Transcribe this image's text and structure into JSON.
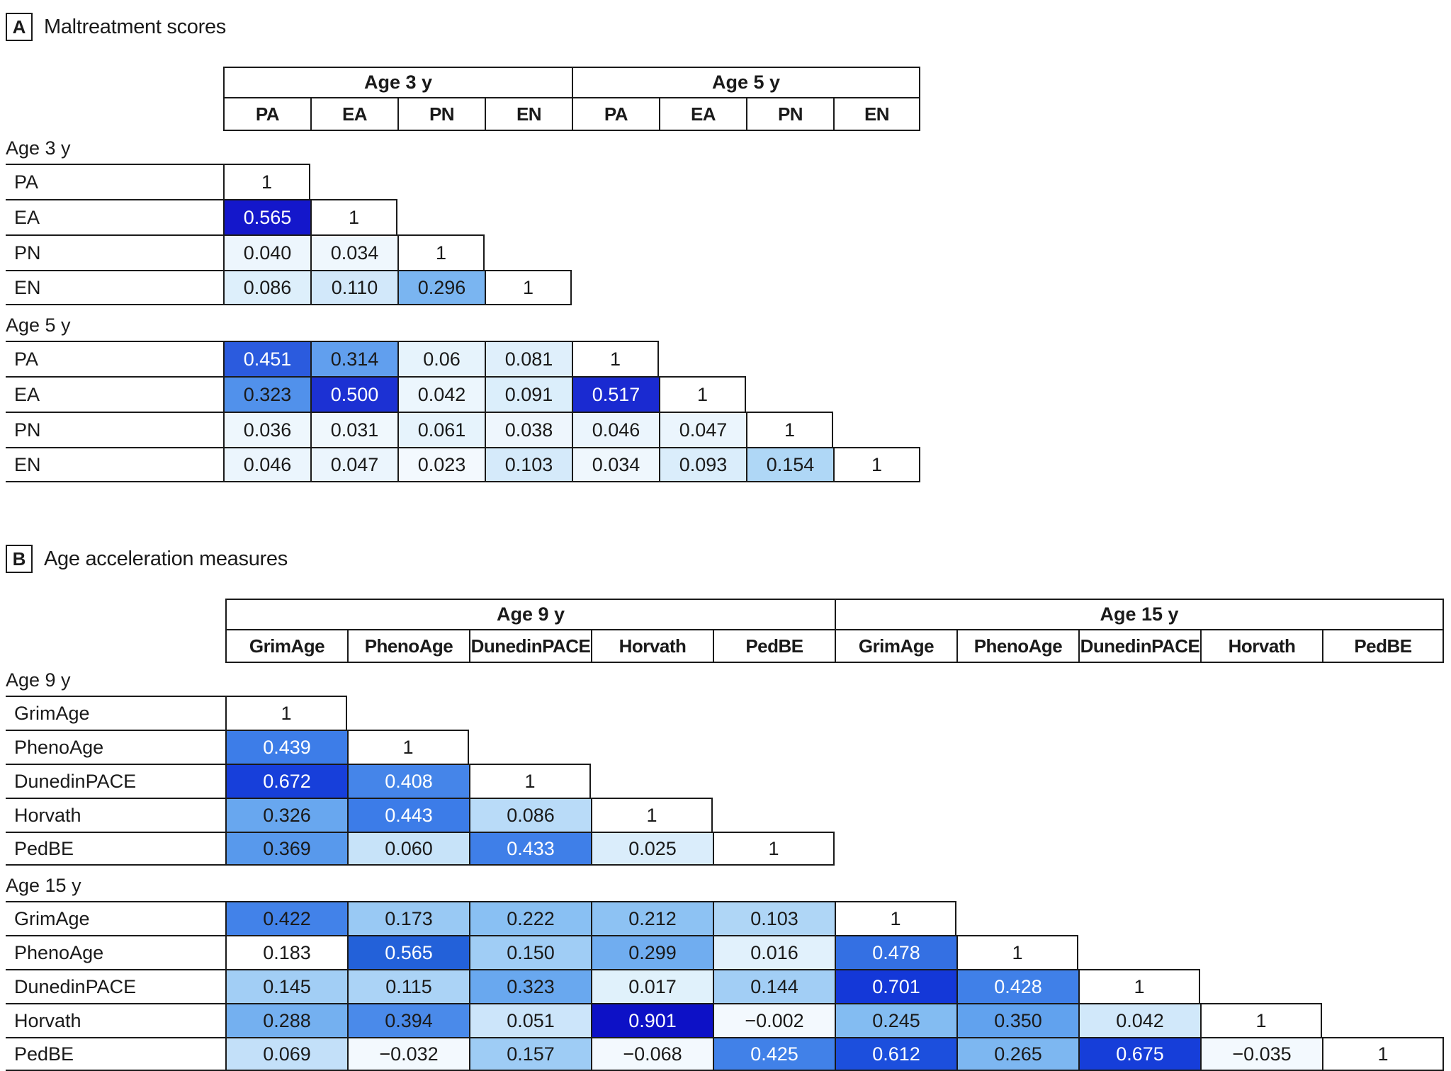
{
  "chart_data": [
    {
      "type": "heatmap",
      "panel_tag": "A",
      "panel_title": "Maltreatment scores",
      "column_groups": [
        {
          "label": "Age 3 y",
          "columns": [
            "PA",
            "EA",
            "PN",
            "EN"
          ]
        },
        {
          "label": "Age 5 y",
          "columns": [
            "PA",
            "EA",
            "PN",
            "EN"
          ]
        }
      ],
      "row_groups": [
        {
          "label": "Age 3 y",
          "rows": [
            {
              "label": "PA",
              "values": [
                "1"
              ]
            },
            {
              "label": "EA",
              "values": [
                "0.565",
                "1"
              ]
            },
            {
              "label": "PN",
              "values": [
                "0.040",
                "0.034",
                "1"
              ]
            },
            {
              "label": "EN",
              "values": [
                "0.086",
                "0.110",
                "0.296",
                "1"
              ]
            }
          ]
        },
        {
          "label": "Age 5 y",
          "rows": [
            {
              "label": "PA",
              "values": [
                "0.451",
                "0.314",
                "0.06",
                "0.081",
                "1"
              ]
            },
            {
              "label": "EA",
              "values": [
                "0.323",
                "0.500",
                "0.042",
                "0.091",
                "0.517",
                "1"
              ]
            },
            {
              "label": "PN",
              "values": [
                "0.036",
                "0.031",
                "0.061",
                "0.038",
                "0.046",
                "0.047",
                "1"
              ]
            },
            {
              "label": "EN",
              "values": [
                "0.046",
                "0.047",
                "0.023",
                "0.103",
                "0.034",
                "0.093",
                "0.154",
                "1"
              ]
            }
          ]
        }
      ],
      "color_scale": {
        "description": "white-to-dark-blue ramp, value-based",
        "white_text_min": 0.4,
        "stops": [
          [
            0.0,
            "#fbfdff"
          ],
          [
            0.04,
            "#edf6fd"
          ],
          [
            0.09,
            "#dceefb"
          ],
          [
            0.115,
            "#cfe7fa"
          ],
          [
            0.155,
            "#aed7f6"
          ],
          [
            0.3,
            "#79b4f1"
          ],
          [
            0.325,
            "#4e8eeb"
          ],
          [
            0.45,
            "#2b5cde"
          ],
          [
            0.5,
            "#1c31d3"
          ],
          [
            0.565,
            "#1417cb"
          ]
        ]
      },
      "cell_overrides": {}
    },
    {
      "type": "heatmap",
      "panel_tag": "B",
      "panel_title": "Age acceleration measures",
      "column_groups": [
        {
          "label": "Age 9 y",
          "columns": [
            "GrimAge",
            "PhenoAge",
            "DunedinPACE",
            "Horvath",
            "PedBE"
          ]
        },
        {
          "label": "Age 15 y",
          "columns": [
            "GrimAge",
            "PhenoAge",
            "DunedinPACE",
            "Horvath",
            "PedBE"
          ]
        }
      ],
      "row_groups": [
        {
          "label": "Age 9 y",
          "rows": [
            {
              "label": "GrimAge",
              "values": [
                "1"
              ]
            },
            {
              "label": "PhenoAge",
              "values": [
                "0.439",
                "1"
              ]
            },
            {
              "label": "DunedinPACE",
              "values": [
                "0.672",
                "0.408",
                "1"
              ]
            },
            {
              "label": "Horvath",
              "values": [
                "0.326",
                "0.443",
                "0.086",
                "1"
              ]
            },
            {
              "label": "PedBE",
              "values": [
                "0.369",
                "0.060",
                "0.433",
                "0.025",
                "1"
              ]
            }
          ]
        },
        {
          "label": "Age 15 y",
          "rows": [
            {
              "label": "GrimAge",
              "values": [
                "0.422",
                "0.173",
                "0.222",
                "0.212",
                "0.103",
                "1"
              ]
            },
            {
              "label": "PhenoAge",
              "values": [
                "0.183",
                "0.565",
                "0.150",
                "0.299",
                "0.016",
                "0.478",
                "1"
              ]
            },
            {
              "label": "DunedinPACE",
              "values": [
                "0.145",
                "0.115",
                "0.323",
                "0.017",
                "0.144",
                "0.701",
                "0.428",
                "1"
              ]
            },
            {
              "label": "Horvath",
              "values": [
                "0.288",
                "0.394",
                "0.051",
                "0.901",
                "−0.002",
                "0.245",
                "0.350",
                "0.042",
                "1"
              ]
            },
            {
              "label": "PedBE",
              "values": [
                "0.069",
                "−0.032",
                "0.157",
                "−0.068",
                "0.425",
                "0.612",
                "0.265",
                "0.675",
                "−0.035",
                "1"
              ]
            }
          ]
        }
      ],
      "color_scale": {
        "description": "white-to-dark-blue ramp, value-based",
        "white_text_min": 0.4,
        "stops": [
          [
            0.0,
            "#f3f9fe"
          ],
          [
            0.02,
            "#ddeffb"
          ],
          [
            0.045,
            "#cfe7fa"
          ],
          [
            0.07,
            "#c2e0f9"
          ],
          [
            0.105,
            "#aed5f6"
          ],
          [
            0.15,
            "#a0cdf5"
          ],
          [
            0.185,
            "#95c7f4"
          ],
          [
            0.22,
            "#8ac0f3"
          ],
          [
            0.25,
            "#82bbf2"
          ],
          [
            0.3,
            "#70adf0"
          ],
          [
            0.355,
            "#60a1ee"
          ],
          [
            0.4,
            "#4787e9"
          ],
          [
            0.445,
            "#3c7ce8"
          ],
          [
            0.48,
            "#336fe3"
          ],
          [
            0.57,
            "#2260d8"
          ],
          [
            0.615,
            "#1c4edd"
          ],
          [
            0.7,
            "#1438d8"
          ],
          [
            0.9,
            "#0d11c6"
          ]
        ]
      },
      "cell_overrides": {
        "1.0.0": {
          "fg": "#1a1a1a"
        },
        "1.1.0": {
          "bg": "#ffffff"
        }
      }
    }
  ],
  "style_colors": {
    "border": "#1a1a1a",
    "text": "#1a1a1a",
    "diagonal_bg": "#ffffff",
    "white_text": "#ffffff"
  }
}
